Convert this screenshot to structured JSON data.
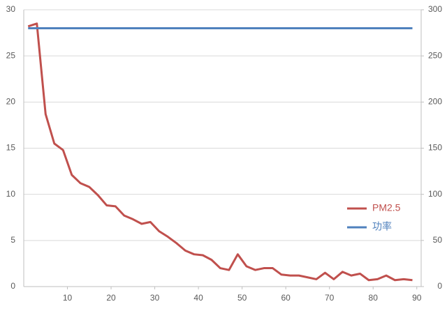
{
  "chart_data": {
    "type": "line",
    "x": [
      1,
      3,
      5,
      7,
      9,
      11,
      13,
      15,
      17,
      19,
      21,
      23,
      25,
      27,
      29,
      31,
      33,
      35,
      37,
      39,
      41,
      43,
      45,
      47,
      49,
      51,
      53,
      55,
      57,
      59,
      61,
      63,
      65,
      67,
      69,
      71,
      73,
      75,
      77,
      79,
      81,
      83,
      85,
      87,
      89
    ],
    "series": [
      {
        "name": "PM2.5",
        "color": "#c0504d",
        "axis": "y",
        "values": [
          28.2,
          28.5,
          18.7,
          15.5,
          14.8,
          12.1,
          11.2,
          10.8,
          9.9,
          8.8,
          8.7,
          7.7,
          7.3,
          6.8,
          7.0,
          6.0,
          5.4,
          4.7,
          3.9,
          3.5,
          3.4,
          2.9,
          2.0,
          1.8,
          3.5,
          2.2,
          1.8,
          2.0,
          2.0,
          1.3,
          1.2,
          1.2,
          1.0,
          0.8,
          1.5,
          0.8,
          1.6,
          1.2,
          1.4,
          0.7,
          0.8,
          1.2,
          0.7,
          0.8,
          0.7
        ]
      },
      {
        "name": "功率",
        "color": "#4f81bd",
        "axis": "y2",
        "values": [
          280,
          280,
          280,
          280,
          280,
          280,
          280,
          280,
          280,
          280,
          280,
          280,
          280,
          280,
          280,
          280,
          280,
          280,
          280,
          280,
          280,
          280,
          280,
          280,
          280,
          280,
          280,
          280,
          280,
          280,
          280,
          280,
          280,
          280,
          280,
          280,
          280,
          280,
          280,
          280,
          280,
          280,
          280,
          280,
          280
        ]
      }
    ],
    "xlim": [
      0,
      91
    ],
    "xticks": [
      10,
      20,
      30,
      40,
      50,
      60,
      70,
      80,
      90
    ],
    "ylim": [
      0,
      30
    ],
    "yticks": [
      0,
      5,
      10,
      15,
      20,
      25,
      30
    ],
    "y2lim": [
      0,
      300
    ],
    "y2ticks": [
      0,
      50,
      100,
      150,
      200,
      250,
      300
    ],
    "grid": true,
    "legend": "right"
  }
}
